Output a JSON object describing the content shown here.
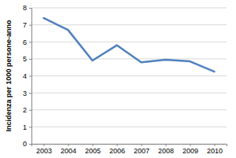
{
  "chart_data": {
    "type": "line",
    "ylabel": "Incidenza per 1000 persone-anno",
    "categories": [
      "2003",
      "2004",
      "2005",
      "2006",
      "2007",
      "2008",
      "2009",
      "2010"
    ],
    "values": [
      7.4,
      6.7,
      4.9,
      5.8,
      4.8,
      4.95,
      4.85,
      4.25
    ],
    "color": "#4F81BD",
    "ylim": [
      0,
      8
    ],
    "yticks": [
      0,
      1,
      2,
      3,
      4,
      5,
      6,
      7,
      8
    ],
    "grid": true
  }
}
